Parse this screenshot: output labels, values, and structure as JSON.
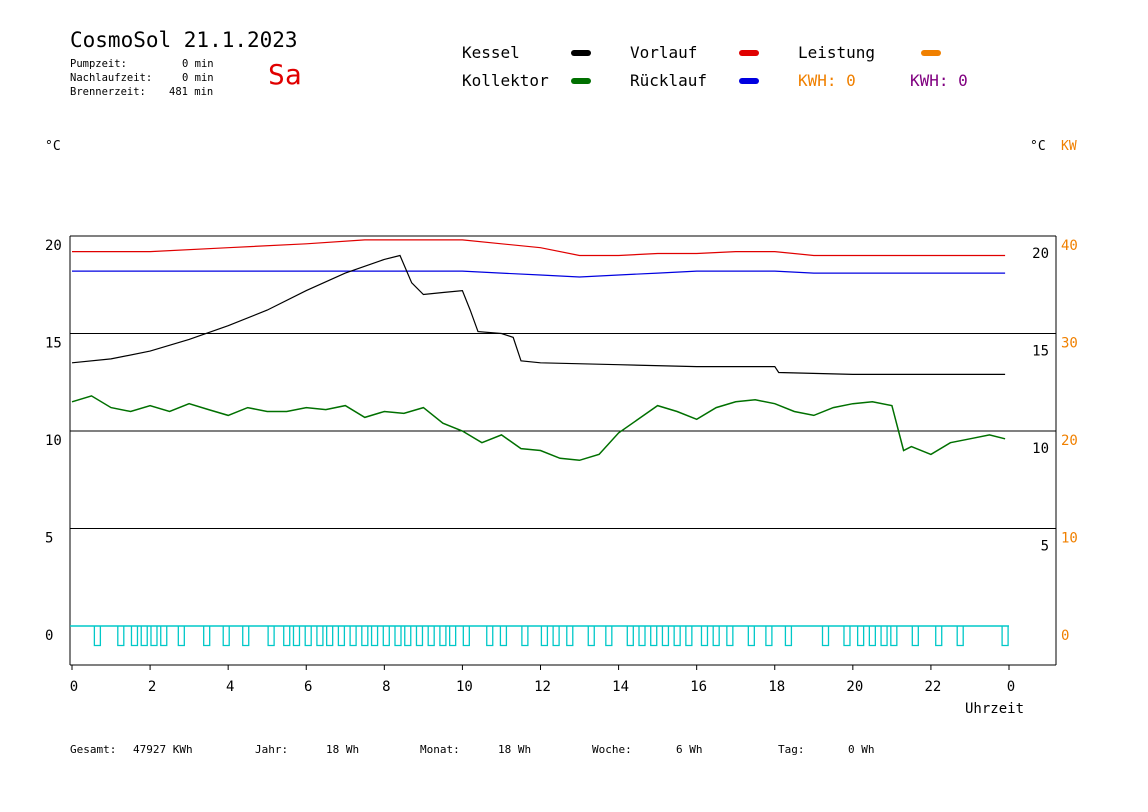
{
  "header": {
    "title": "CosmoSol 21.1.2023",
    "pump_label": "Pumpzeit:",
    "pump_value": "0 min",
    "afterrun_label": "Nachlaufzeit:",
    "afterrun_value": "0 min",
    "burner_label": "Brennerzeit:",
    "burner_value": "481 min",
    "weekday": "Sa"
  },
  "legend": {
    "kessel": "Kessel",
    "kollektor": "Kollektor",
    "vorlauf": "Vorlauf",
    "ruecklauf": "Rücklauf",
    "leistung": "Leistung",
    "kwh1": "KWH: 0",
    "kwh2": "KWH: 0"
  },
  "units": {
    "left": "°C",
    "right": "°C",
    "right_kw": "KW"
  },
  "footer": {
    "gesamt_label": "Gesamt:",
    "gesamt_value": "47927 KWh",
    "jahr_label": "Jahr:",
    "jahr_value": "18 Wh",
    "monat_label": "Monat:",
    "monat_value": "18 Wh",
    "woche_label": "Woche:",
    "woche_value": "6 Wh",
    "tag_label": "Tag:",
    "tag_value": "0 Wh"
  },
  "colors": {
    "kessel": "#000000",
    "kollektor": "#007000",
    "vorlauf": "#e00000",
    "ruecklauf": "#0000e0",
    "leistung": "#f08000",
    "kwh2": "#800080",
    "pump": "#00c8c8"
  },
  "chart_data": {
    "type": "line",
    "xlabel": "Uhrzeit",
    "x_ticks": [
      "0",
      "2",
      "4",
      "6",
      "8",
      "10",
      "12",
      "14",
      "16",
      "18",
      "20",
      "22",
      "0"
    ],
    "xlim": [
      0,
      24
    ],
    "ylim": [
      -1.5,
      20
    ],
    "y_ticks_left": [
      "20",
      "15",
      "10",
      "5",
      "0"
    ],
    "y_ticks_right": [
      "20",
      "15",
      "10",
      "5"
    ],
    "y_ticks_kw": [
      "40",
      "30",
      "20",
      "10",
      "0"
    ],
    "y_tick_values": [
      20,
      15,
      10,
      5,
      0
    ],
    "series": [
      {
        "name": "Vorlauf",
        "color": "#e00000",
        "x": [
          0,
          2,
          4,
          6,
          7.5,
          9,
          10,
          11,
          12,
          13,
          14,
          15,
          16,
          17,
          18,
          19,
          20,
          21,
          22,
          23.9
        ],
        "y": [
          19.2,
          19.2,
          19.4,
          19.6,
          19.8,
          19.8,
          19.8,
          19.6,
          19.4,
          19.0,
          19.0,
          19.1,
          19.1,
          19.2,
          19.2,
          19.0,
          19.0,
          19.0,
          19.0,
          19.0
        ]
      },
      {
        "name": "Rücklauf",
        "color": "#0000e0",
        "x": [
          0,
          2,
          4,
          6,
          8,
          10,
          11,
          12,
          13,
          14,
          15,
          16,
          17,
          18,
          19,
          20,
          22,
          23.9
        ],
        "y": [
          18.2,
          18.2,
          18.2,
          18.2,
          18.2,
          18.2,
          18.1,
          18.0,
          17.9,
          18.0,
          18.1,
          18.2,
          18.2,
          18.2,
          18.1,
          18.1,
          18.1,
          18.1
        ]
      },
      {
        "name": "Kessel",
        "color": "#000000",
        "x": [
          0,
          1,
          2,
          3,
          4,
          5,
          6,
          7,
          8,
          8.4,
          8.7,
          9.0,
          9.5,
          10.0,
          10.2,
          10.4,
          11.0,
          11.3,
          11.5,
          12,
          14,
          16,
          18,
          18.1,
          20,
          22,
          23.9
        ],
        "y": [
          13.5,
          13.7,
          14.1,
          14.7,
          15.4,
          16.2,
          17.2,
          18.1,
          18.8,
          19.0,
          17.6,
          17.0,
          17.1,
          17.2,
          16.2,
          15.1,
          15.0,
          14.8,
          13.6,
          13.5,
          13.4,
          13.3,
          13.3,
          13.0,
          12.9,
          12.9,
          12.9
        ]
      },
      {
        "name": "Kollektor",
        "color": "#007000",
        "x": [
          0,
          0.5,
          1,
          1.5,
          2,
          2.5,
          3,
          3.5,
          4,
          4.5,
          5,
          5.5,
          6,
          6.5,
          7,
          7.5,
          8,
          8.5,
          9,
          9.5,
          10,
          10.5,
          11,
          11.5,
          12,
          12.5,
          13,
          13.5,
          14,
          14.5,
          15,
          15.5,
          16,
          16.5,
          17,
          17.5,
          18,
          18.5,
          19,
          19.5,
          20,
          20.5,
          21,
          21.3,
          21.5,
          22,
          22.5,
          23,
          23.5,
          23.9
        ],
        "y": [
          11.5,
          11.8,
          11.2,
          11.0,
          11.3,
          11.0,
          11.4,
          11.1,
          10.8,
          11.2,
          11.0,
          11.0,
          11.2,
          11.1,
          11.3,
          10.7,
          11.0,
          10.9,
          11.2,
          10.4,
          10.0,
          9.4,
          9.8,
          9.1,
          9.0,
          8.6,
          8.5,
          8.8,
          9.9,
          10.6,
          11.3,
          11.0,
          10.6,
          11.2,
          11.5,
          11.6,
          11.4,
          11.0,
          10.8,
          11.2,
          11.4,
          11.5,
          11.3,
          9.0,
          9.2,
          8.8,
          9.4,
          9.6,
          9.8,
          9.6
        ]
      }
    ],
    "pump_series": {
      "name": "Pumpe",
      "color": "#00c8c8",
      "baseline": 0,
      "dip": -1,
      "pulses_x": [
        0.65,
        1.25,
        1.6,
        1.85,
        2.1,
        2.35,
        2.8,
        3.45,
        3.95,
        4.45,
        5.1,
        5.5,
        5.75,
        6.05,
        6.35,
        6.6,
        6.9,
        7.2,
        7.5,
        7.75,
        8.05,
        8.35,
        8.6,
        8.9,
        9.2,
        9.5,
        9.75,
        10.1,
        10.7,
        11.05,
        11.6,
        12.1,
        12.4,
        12.75,
        13.3,
        13.75,
        14.3,
        14.6,
        14.9,
        15.2,
        15.5,
        15.8,
        16.2,
        16.5,
        16.85,
        17.4,
        17.85,
        18.35,
        19.3,
        19.85,
        20.2,
        20.5,
        20.8,
        21.05,
        21.6,
        22.2,
        22.75,
        23.9
      ]
    }
  }
}
